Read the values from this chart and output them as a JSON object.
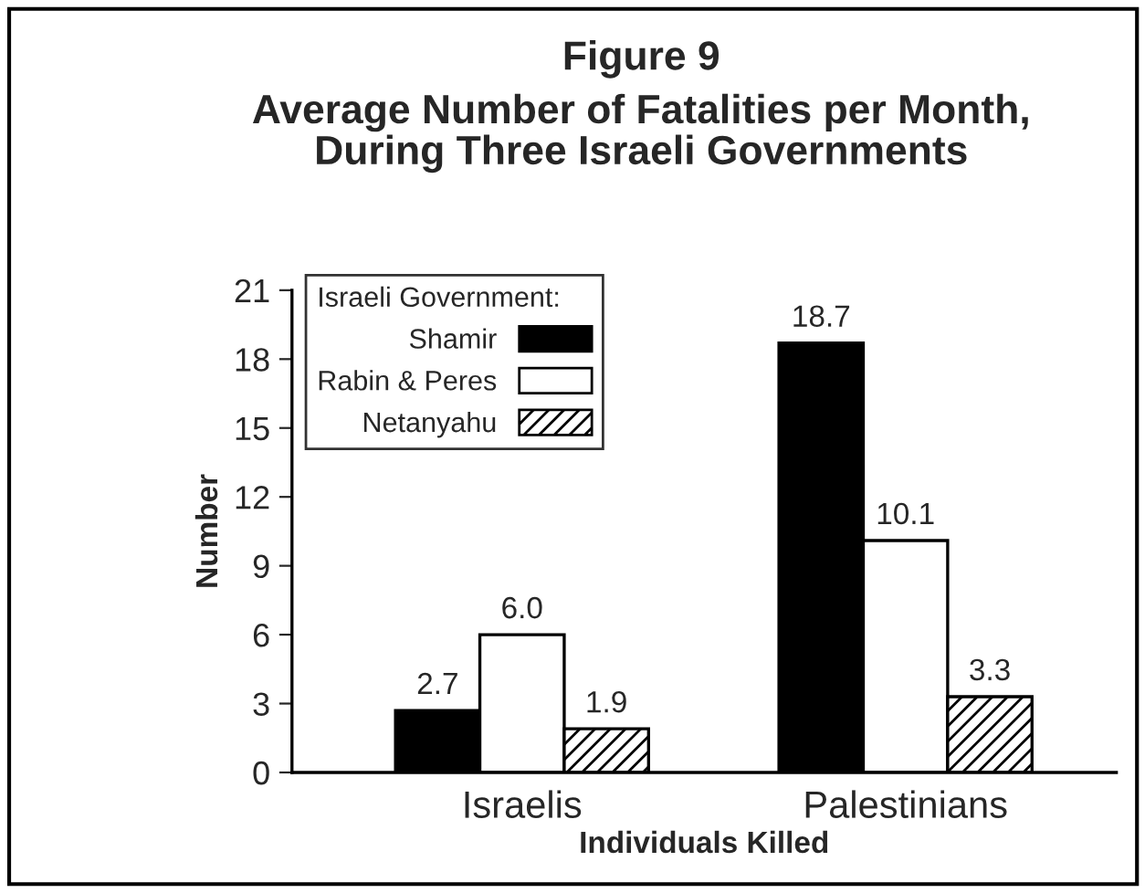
{
  "chart_data": {
    "type": "bar",
    "title": "Figure 9",
    "subtitle": "Average Number of Fatalities per Month,\nDuring Three Israeli Governments",
    "xlabel": "Individuals Killed",
    "ylabel": "Number",
    "legend_title": "Israeli Government:",
    "categories": [
      "Israelis",
      "Palestinians"
    ],
    "series": [
      {
        "name": "Shamir",
        "color": "#000000",
        "values": [
          2.7,
          18.7
        ],
        "value_labels": [
          "2.7",
          "18.7"
        ]
      },
      {
        "name": "Rabin & Peres",
        "color": "#ffffff",
        "values": [
          6.0,
          10.1
        ],
        "value_labels": [
          "6.0",
          "10.1"
        ]
      },
      {
        "name": "Netanyahu",
        "color": "#000000",
        "values": [
          1.9,
          3.3
        ],
        "value_labels": [
          "1.9",
          "3.3"
        ]
      }
    ],
    "ylim": [
      0,
      21
    ],
    "yticks": [
      0,
      3,
      6,
      9,
      12,
      15,
      18,
      21
    ],
    "data_labels": true,
    "legend": "top left",
    "grid": false
  }
}
